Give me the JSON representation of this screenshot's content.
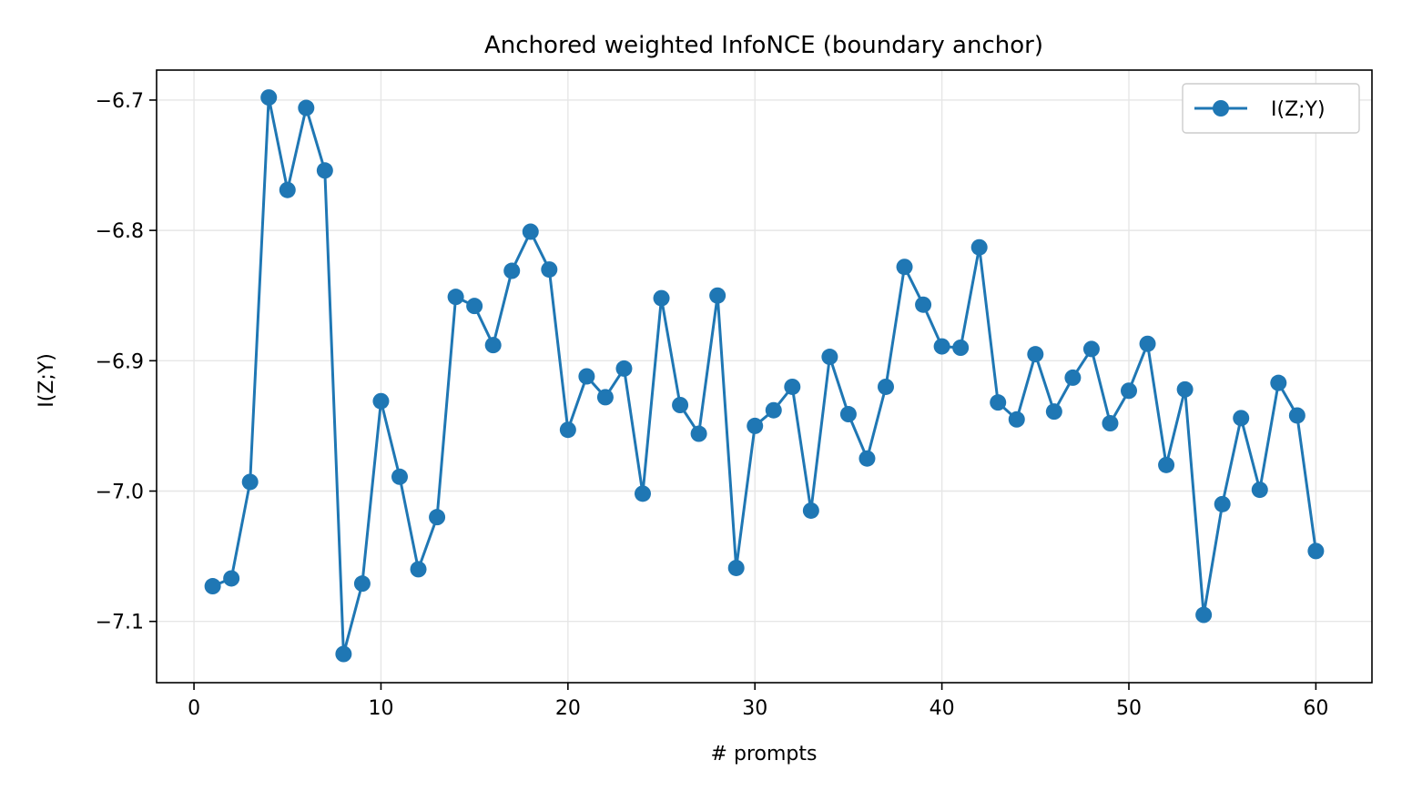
{
  "chart_data": {
    "type": "line",
    "title": "Anchored weighted InfoNCE (boundary anchor)",
    "xlabel": "# prompts",
    "ylabel": "I(Z;Y)",
    "xlim": [
      -2,
      63
    ],
    "ylim": [
      -7.147,
      -6.677
    ],
    "xticks": [
      0,
      10,
      20,
      30,
      40,
      50,
      60
    ],
    "xtick_labels": [
      "0",
      "10",
      "20",
      "30",
      "40",
      "50",
      "60"
    ],
    "yticks": [
      -6.7,
      -6.8,
      -6.9,
      -7.0,
      -7.1
    ],
    "ytick_labels": [
      "−6.7",
      "−6.8",
      "−6.9",
      "−7.0",
      "−7.1"
    ],
    "grid": true,
    "legend_position": "top-right",
    "colors": {
      "series": "#1f77b4",
      "grid": "#e6e6e6",
      "axes": "#000000"
    },
    "series": [
      {
        "name": "I(Z;Y)",
        "x": [
          1,
          2,
          3,
          4,
          5,
          6,
          7,
          8,
          9,
          10,
          11,
          12,
          13,
          14,
          15,
          16,
          17,
          18,
          19,
          20,
          21,
          22,
          23,
          24,
          25,
          26,
          27,
          28,
          29,
          30,
          31,
          32,
          33,
          34,
          35,
          36,
          37,
          38,
          39,
          40,
          41,
          42,
          43,
          44,
          45,
          46,
          47,
          48,
          49,
          50,
          51,
          52,
          53,
          54,
          55,
          56,
          57,
          58,
          59,
          60
        ],
        "y": [
          -7.073,
          -7.067,
          -6.993,
          -6.698,
          -6.769,
          -6.706,
          -6.754,
          -7.125,
          -7.071,
          -6.931,
          -6.989,
          -7.06,
          -7.02,
          -6.851,
          -6.858,
          -6.888,
          -6.831,
          -6.801,
          -6.83,
          -6.953,
          -6.912,
          -6.928,
          -6.906,
          -7.002,
          -6.852,
          -6.934,
          -6.956,
          -6.85,
          -7.059,
          -6.95,
          -6.938,
          -6.92,
          -7.015,
          -6.897,
          -6.941,
          -6.975,
          -6.92,
          -6.828,
          -6.857,
          -6.889,
          -6.89,
          -6.813,
          -6.932,
          -6.945,
          -6.895,
          -6.939,
          -6.913,
          -6.891,
          -6.948,
          -6.923,
          -6.887,
          -6.98,
          -6.922,
          -7.095,
          -7.01,
          -6.944,
          -6.999,
          -6.917,
          -6.942,
          -7.046
        ]
      }
    ]
  }
}
